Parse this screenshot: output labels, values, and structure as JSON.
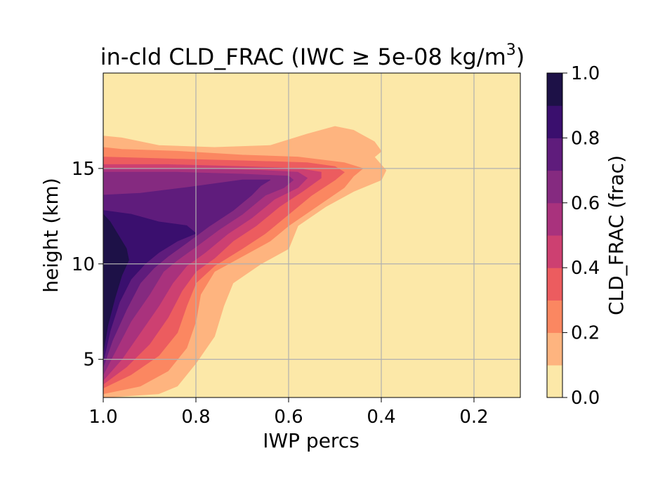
{
  "chart_data": {
    "type": "contourf",
    "title": "in-cld CLD_FRAC (IWC ≥ 5e-08 kg/m",
    "title_superscript": "3",
    "title_close": ")",
    "xlabel": "IWP percs",
    "ylabel": "height (km)",
    "xlim": [
      1.0,
      0.1
    ],
    "x_inverted": true,
    "ylim": [
      3.0,
      20.0
    ],
    "x_ticks": [
      1.0,
      0.8,
      0.6,
      0.4,
      0.2
    ],
    "x_tick_labels": [
      "1.0",
      "0.8",
      "0.6",
      "0.4",
      "0.2"
    ],
    "y_ticks": [
      5,
      10,
      15
    ],
    "y_tick_labels": [
      "5",
      "10",
      "15"
    ],
    "grid": true,
    "colormap": "magma_r",
    "colorbar": {
      "label": "CLD_FRAC (frac)",
      "range": [
        0.0,
        1.0
      ],
      "ticks": [
        0.0,
        0.2,
        0.4,
        0.6,
        0.8,
        1.0
      ],
      "tick_labels": [
        "0.0",
        "0.2",
        "0.4",
        "0.6",
        "0.8",
        "1.0"
      ],
      "levels": [
        0.0,
        0.1,
        0.2,
        0.3,
        0.4,
        0.5,
        0.6,
        0.7,
        0.8,
        0.9,
        1.0
      ],
      "colors": [
        "#fce8a8",
        "#feb47f",
        "#fb8761",
        "#ec5c5f",
        "#cd4071",
        "#a9327d",
        "#852a80",
        "#5f1c7c",
        "#3a0f6e",
        "#1d1147",
        "#0a0a20"
      ]
    },
    "contours": [
      {
        "level": 0.1,
        "points": [
          [
            1.0,
            3.0
          ],
          [
            0.88,
            3.2
          ],
          [
            0.84,
            3.6
          ],
          [
            0.8,
            4.8
          ],
          [
            0.76,
            6.2
          ],
          [
            0.74,
            7.8
          ],
          [
            0.72,
            9.0
          ],
          [
            0.66,
            10.0
          ],
          [
            0.6,
            10.8
          ],
          [
            0.58,
            12.0
          ],
          [
            0.52,
            13.0
          ],
          [
            0.46,
            13.8
          ],
          [
            0.4,
            14.4
          ],
          [
            0.39,
            14.9
          ],
          [
            0.415,
            15.6
          ],
          [
            0.4,
            15.9
          ],
          [
            0.415,
            16.4
          ],
          [
            0.46,
            17.0
          ],
          [
            0.5,
            17.2
          ],
          [
            0.56,
            16.8
          ],
          [
            0.64,
            16.2
          ],
          [
            0.76,
            16.1
          ],
          [
            0.88,
            16.2
          ],
          [
            0.96,
            16.6
          ],
          [
            1.0,
            16.7
          ]
        ]
      },
      {
        "level": 0.2,
        "points": [
          [
            1.0,
            3.2
          ],
          [
            0.92,
            3.6
          ],
          [
            0.86,
            4.4
          ],
          [
            0.82,
            5.6
          ],
          [
            0.8,
            7.0
          ],
          [
            0.79,
            8.4
          ],
          [
            0.76,
            9.6
          ],
          [
            0.7,
            10.4
          ],
          [
            0.64,
            11.2
          ],
          [
            0.6,
            12.0
          ],
          [
            0.54,
            13.0
          ],
          [
            0.48,
            14.0
          ],
          [
            0.46,
            14.6
          ],
          [
            0.44,
            15.0
          ],
          [
            0.48,
            15.3
          ],
          [
            0.58,
            15.6
          ],
          [
            0.7,
            15.7
          ],
          [
            0.84,
            15.9
          ],
          [
            0.96,
            16.0
          ],
          [
            1.0,
            16.1
          ]
        ]
      },
      {
        "level": 0.3,
        "points": [
          [
            1.0,
            3.5
          ],
          [
            0.94,
            4.2
          ],
          [
            0.88,
            5.2
          ],
          [
            0.84,
            6.4
          ],
          [
            0.82,
            7.8
          ],
          [
            0.8,
            9.0
          ],
          [
            0.76,
            9.9
          ],
          [
            0.7,
            10.8
          ],
          [
            0.65,
            11.6
          ],
          [
            0.6,
            12.6
          ],
          [
            0.55,
            13.6
          ],
          [
            0.5,
            14.4
          ],
          [
            0.48,
            14.8
          ],
          [
            0.5,
            15.1
          ],
          [
            0.56,
            15.3
          ],
          [
            0.7,
            15.4
          ],
          [
            0.86,
            15.5
          ],
          [
            1.0,
            15.6
          ]
        ]
      },
      {
        "level": 0.4,
        "points": [
          [
            1.0,
            3.7
          ],
          [
            0.95,
            4.6
          ],
          [
            0.9,
            5.8
          ],
          [
            0.86,
            7.2
          ],
          [
            0.83,
            8.6
          ],
          [
            0.8,
            9.6
          ],
          [
            0.76,
            10.3
          ],
          [
            0.72,
            11.2
          ],
          [
            0.67,
            12.0
          ],
          [
            0.62,
            13.0
          ],
          [
            0.57,
            13.8
          ],
          [
            0.53,
            14.5
          ],
          [
            0.53,
            14.8
          ],
          [
            0.58,
            15.0
          ],
          [
            0.7,
            15.1
          ],
          [
            0.86,
            15.2
          ],
          [
            1.0,
            15.2
          ]
        ]
      },
      {
        "level": 0.5,
        "points": [
          [
            1.0,
            3.9
          ],
          [
            0.96,
            5.0
          ],
          [
            0.92,
            6.4
          ],
          [
            0.88,
            7.8
          ],
          [
            0.85,
            9.0
          ],
          [
            0.82,
            9.9
          ],
          [
            0.78,
            10.6
          ],
          [
            0.73,
            11.6
          ],
          [
            0.68,
            12.4
          ],
          [
            0.63,
            13.4
          ],
          [
            0.58,
            14.0
          ],
          [
            0.56,
            14.5
          ],
          [
            0.58,
            14.8
          ],
          [
            0.66,
            14.9
          ],
          [
            0.8,
            15.0
          ],
          [
            0.92,
            15.0
          ],
          [
            1.0,
            15.0
          ]
        ]
      },
      {
        "level": 0.6,
        "points": [
          [
            1.0,
            4.2
          ],
          [
            0.97,
            5.6
          ],
          [
            0.94,
            7.0
          ],
          [
            0.9,
            8.4
          ],
          [
            0.87,
            9.6
          ],
          [
            0.84,
            10.2
          ],
          [
            0.8,
            10.9
          ],
          [
            0.75,
            11.8
          ],
          [
            0.7,
            12.6
          ],
          [
            0.65,
            13.6
          ],
          [
            0.61,
            14.0
          ],
          [
            0.59,
            14.4
          ],
          [
            0.6,
            14.6
          ],
          [
            0.7,
            14.7
          ],
          [
            0.84,
            14.8
          ],
          [
            1.0,
            14.8
          ]
        ]
      },
      {
        "level": 0.7,
        "points": [
          [
            1.0,
            4.6
          ],
          [
            0.98,
            6.0
          ],
          [
            0.95,
            7.6
          ],
          [
            0.92,
            9.0
          ],
          [
            0.89,
            9.8
          ],
          [
            0.86,
            10.4
          ],
          [
            0.82,
            11.1
          ],
          [
            0.77,
            12.0
          ],
          [
            0.72,
            12.8
          ],
          [
            0.68,
            13.6
          ],
          [
            0.66,
            14.1
          ],
          [
            0.64,
            14.4
          ],
          [
            0.7,
            14.4
          ],
          [
            0.82,
            14.0
          ],
          [
            0.92,
            13.7
          ],
          [
            1.0,
            13.6
          ]
        ]
      },
      {
        "level": 0.8,
        "points": [
          [
            1.0,
            4.9
          ],
          [
            0.985,
            6.5
          ],
          [
            0.965,
            8.0
          ],
          [
            0.94,
            9.2
          ],
          [
            0.91,
            10.0
          ],
          [
            0.88,
            10.6
          ],
          [
            0.84,
            11.2
          ],
          [
            0.8,
            11.6
          ],
          [
            0.82,
            12.0
          ],
          [
            0.88,
            12.2
          ],
          [
            0.94,
            12.6
          ],
          [
            1.0,
            12.8
          ]
        ]
      },
      {
        "level": 0.9,
        "points": [
          [
            1.0,
            5.4
          ],
          [
            0.99,
            6.8
          ],
          [
            0.975,
            8.2
          ],
          [
            0.96,
            9.4
          ],
          [
            0.945,
            10.2
          ],
          [
            0.95,
            10.8
          ],
          [
            0.97,
            11.6
          ],
          [
            0.985,
            12.2
          ],
          [
            1.0,
            12.6
          ]
        ]
      }
    ]
  }
}
